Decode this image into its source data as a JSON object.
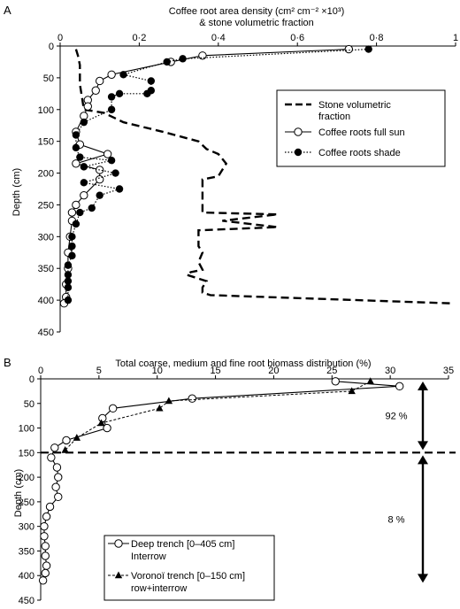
{
  "chart_data": [
    {
      "type": "line",
      "panel": "A",
      "title": "Coffee root area density (cm² cm⁻² ×10³)",
      "title2": "& stone volumetric fraction",
      "ylabel": "Depth (cm)",
      "xlim": [
        0,
        1
      ],
      "ylim": [
        0,
        450
      ],
      "y_inverted": true,
      "x_axis_position": "top",
      "x_ticks": [
        {
          "v": 0,
          "label": "0"
        },
        {
          "v": 0.2,
          "label": "0·2"
        },
        {
          "v": 0.4,
          "label": "0·4"
        },
        {
          "v": 0.6,
          "label": "0·6"
        },
        {
          "v": 0.8,
          "label": "0·8"
        },
        {
          "v": 1,
          "label": "1"
        }
      ],
      "y_ticks": [
        0,
        50,
        100,
        150,
        200,
        250,
        300,
        350,
        400,
        450
      ],
      "grid": false,
      "legend_position": "right",
      "series": [
        {
          "name": "Stone volumetric fraction",
          "style": "dashed",
          "marker": "none",
          "points": [
            [
              0.04,
              5
            ],
            [
              0.045,
              15
            ],
            [
              0.05,
              30
            ],
            [
              0.05,
              60
            ],
            [
              0.055,
              80
            ],
            [
              0.06,
              100
            ],
            [
              0.11,
              105
            ],
            [
              0.16,
              120
            ],
            [
              0.26,
              135
            ],
            [
              0.35,
              150
            ],
            [
              0.37,
              162
            ],
            [
              0.4,
              170
            ],
            [
              0.42,
              185
            ],
            [
              0.4,
              205
            ],
            [
              0.36,
              210
            ],
            [
              0.36,
              235
            ],
            [
              0.36,
              262
            ],
            [
              0.55,
              265
            ],
            [
              0.41,
              275
            ],
            [
              0.55,
              285
            ],
            [
              0.35,
              290
            ],
            [
              0.35,
              315
            ],
            [
              0.36,
              325
            ],
            [
              0.35,
              340
            ],
            [
              0.36,
              352
            ],
            [
              0.33,
              356
            ],
            [
              0.32,
              360
            ],
            [
              0.37,
              370
            ],
            [
              0.36,
              380
            ],
            [
              0.36,
              388
            ],
            [
              0.38,
              392
            ],
            [
              0.99,
              405
            ]
          ]
        },
        {
          "name": "Coffee roots full sun",
          "style": "solid",
          "marker": "open-circle",
          "points": [
            [
              0.73,
              5
            ],
            [
              0.36,
              15
            ],
            [
              0.28,
              25
            ],
            [
              0.13,
              45
            ],
            [
              0.1,
              55
            ],
            [
              0.09,
              70
            ],
            [
              0.07,
              85
            ],
            [
              0.07,
              95
            ],
            [
              0.06,
              110
            ],
            [
              0.04,
              135
            ],
            [
              0.05,
              155
            ],
            [
              0.12,
              170
            ],
            [
              0.04,
              185
            ],
            [
              0.1,
              195
            ],
            [
              0.1,
              210
            ],
            [
              0.06,
              235
            ],
            [
              0.04,
              250
            ],
            [
              0.03,
              262
            ],
            [
              0.03,
              275
            ],
            [
              0.025,
              300
            ],
            [
              0.02,
              325
            ],
            [
              0.02,
              350
            ],
            [
              0.015,
              375
            ],
            [
              0.015,
              395
            ],
            [
              0.01,
              405
            ]
          ]
        },
        {
          "name": "Coffee roots shade",
          "style": "dotted",
          "marker": "filled-circle",
          "points": [
            [
              0.78,
              5
            ],
            [
              0.31,
              20
            ],
            [
              0.27,
              25
            ],
            [
              0.16,
              45
            ],
            [
              0.23,
              55
            ],
            [
              0.23,
              70
            ],
            [
              0.22,
              75
            ],
            [
              0.15,
              75
            ],
            [
              0.13,
              80
            ],
            [
              0.13,
              100
            ],
            [
              0.06,
              120
            ],
            [
              0.04,
              140
            ],
            [
              0.04,
              160
            ],
            [
              0.05,
              175
            ],
            [
              0.13,
              180
            ],
            [
              0.06,
              190
            ],
            [
              0.14,
              200
            ],
            [
              0.06,
              215
            ],
            [
              0.15,
              225
            ],
            [
              0.1,
              235
            ],
            [
              0.08,
              255
            ],
            [
              0.05,
              262
            ],
            [
              0.04,
              280
            ],
            [
              0.03,
              300
            ],
            [
              0.03,
              315
            ],
            [
              0.03,
              330
            ],
            [
              0.02,
              345
            ],
            [
              0.02,
              360
            ],
            [
              0.02,
              370
            ],
            [
              0.02,
              380
            ],
            [
              0.02,
              400
            ]
          ]
        }
      ]
    },
    {
      "type": "line",
      "panel": "B",
      "title": "Total coarse, medium and fine root biomass distribution (%)",
      "ylabel": "Depth (cm)",
      "xlim": [
        0,
        35
      ],
      "ylim": [
        0,
        450
      ],
      "y_inverted": true,
      "x_axis_position": "top",
      "x_ticks": [
        {
          "v": 0,
          "label": "0"
        },
        {
          "v": 5,
          "label": "5"
        },
        {
          "v": 10,
          "label": "10"
        },
        {
          "v": 15,
          "label": "15"
        },
        {
          "v": 20,
          "label": "20"
        },
        {
          "v": 25,
          "label": "25"
        },
        {
          "v": 30,
          "label": "30"
        },
        {
          "v": 35,
          "label": "35"
        }
      ],
      "y_ticks": [
        0,
        50,
        100,
        150,
        200,
        250,
        300,
        350,
        400,
        450
      ],
      "grid": false,
      "legend_position": "bottom-left",
      "reference_depth": 150,
      "annotations": [
        {
          "text": "92 %",
          "from": 0,
          "to": 150
        },
        {
          "text": "8 %",
          "from": 150,
          "to": 420
        }
      ],
      "series": [
        {
          "name_lines": [
            "Deep trench [0–405 cm]",
            "Interrow"
          ],
          "style": "solid",
          "marker": "open-circle",
          "points": [
            [
              25.3,
              5
            ],
            [
              30.8,
              15
            ],
            [
              13,
              40
            ],
            [
              6.2,
              60
            ],
            [
              5.3,
              80
            ],
            [
              5.7,
              100
            ],
            [
              2.2,
              125
            ],
            [
              1.2,
              140
            ],
            [
              0.9,
              160
            ],
            [
              1.4,
              180
            ],
            [
              1.5,
              200
            ],
            [
              1.3,
              220
            ],
            [
              1.5,
              240
            ],
            [
              0.8,
              260
            ],
            [
              0.5,
              280
            ],
            [
              0.3,
              300
            ],
            [
              0.3,
              320
            ],
            [
              0.4,
              340
            ],
            [
              0.4,
              360
            ],
            [
              0.5,
              380
            ],
            [
              0.4,
              395
            ],
            [
              0.2,
              410
            ]
          ]
        },
        {
          "name_lines": [
            "Voronoï trench [0–150 cm]",
            "row+interrow"
          ],
          "style": "dashed",
          "marker": "filled-triangle",
          "points": [
            [
              28.3,
              5
            ],
            [
              26.7,
              25
            ],
            [
              11,
              45
            ],
            [
              10.2,
              60
            ],
            [
              5.2,
              90
            ],
            [
              3.1,
              120
            ],
            [
              2.1,
              145
            ]
          ]
        }
      ]
    }
  ],
  "panel_letters": {
    "a": "A",
    "b": "B"
  }
}
